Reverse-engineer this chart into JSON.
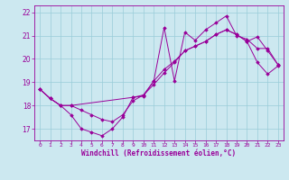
{
  "xlabel": "Windchill (Refroidissement éolien,°C)",
  "background_color": "#cce8f0",
  "grid_color": "#99ccd8",
  "line_color": "#990099",
  "xlim": [
    -0.5,
    23.5
  ],
  "ylim": [
    16.5,
    22.3
  ],
  "yticks": [
    17,
    18,
    19,
    20,
    21,
    22
  ],
  "xticks": [
    0,
    1,
    2,
    3,
    4,
    5,
    6,
    7,
    8,
    9,
    10,
    11,
    12,
    13,
    14,
    15,
    16,
    17,
    18,
    19,
    20,
    21,
    22,
    23
  ],
  "series1_x": [
    0,
    1,
    2,
    3,
    4,
    5,
    6,
    7,
    8,
    9,
    10,
    11,
    12,
    13,
    14,
    15,
    16,
    17,
    18,
    19,
    20,
    21,
    22,
    23
  ],
  "series1_y": [
    18.7,
    18.3,
    18.0,
    17.6,
    17.0,
    16.85,
    16.7,
    17.0,
    17.5,
    18.35,
    18.4,
    19.05,
    21.35,
    19.05,
    21.15,
    20.8,
    21.25,
    21.55,
    21.85,
    21.0,
    20.85,
    20.45,
    20.45,
    19.75
  ],
  "series2_x": [
    0,
    1,
    2,
    3,
    4,
    5,
    6,
    7,
    8,
    9,
    10,
    11,
    12,
    13,
    14,
    15,
    16,
    17,
    18,
    19,
    20,
    21,
    22,
    23
  ],
  "series2_y": [
    18.7,
    18.3,
    18.0,
    18.0,
    17.8,
    17.6,
    17.4,
    17.3,
    17.6,
    18.2,
    18.45,
    18.9,
    19.4,
    19.85,
    20.35,
    20.55,
    20.75,
    21.05,
    21.25,
    21.05,
    20.75,
    19.85,
    19.35,
    19.7
  ],
  "series3_x": [
    0,
    1,
    2,
    3,
    9,
    10,
    11,
    12,
    13,
    14,
    15,
    16,
    17,
    18,
    19,
    20,
    21,
    22,
    23
  ],
  "series3_y": [
    18.7,
    18.3,
    18.0,
    18.0,
    18.35,
    18.45,
    19.05,
    19.55,
    19.9,
    20.35,
    20.55,
    20.75,
    21.05,
    21.25,
    21.05,
    20.75,
    20.95,
    20.35,
    19.75
  ]
}
